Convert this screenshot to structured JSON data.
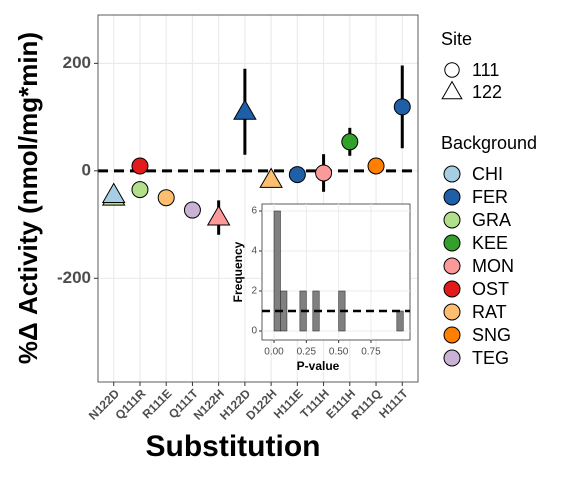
{
  "chart_data": [
    {
      "type": "scatter",
      "y_label": "%Δ Activity (nmol/mg*min)",
      "x_label": "Substitution",
      "categories": [
        "N122D",
        "Q111R",
        "R111E",
        "Q111T",
        "N122H",
        "H122D",
        "D122H",
        "H111E",
        "T111H",
        "E111H",
        "R111Q",
        "H111T"
      ],
      "ylim": [
        -393,
        290
      ],
      "yticks": [
        -200,
        0,
        200
      ],
      "grid": true,
      "hline": 0,
      "site_title": "Site",
      "sites": [
        {
          "name": "111",
          "shape": "circle"
        },
        {
          "name": "122",
          "shape": "triangle"
        }
      ],
      "background_title": "Background",
      "backgrounds": [
        {
          "name": "CHI",
          "color": "#a6cee3"
        },
        {
          "name": "FER",
          "color": "#1f5fa8"
        },
        {
          "name": "GRA",
          "color": "#b2df8a"
        },
        {
          "name": "KEE",
          "color": "#33a02c"
        },
        {
          "name": "MON",
          "color": "#fb9a99"
        },
        {
          "name": "OST",
          "color": "#e31a1c"
        },
        {
          "name": "RAT",
          "color": "#fdbf6f"
        },
        {
          "name": "SNG",
          "color": "#ff7f00"
        },
        {
          "name": "TEG",
          "color": "#cab2d6"
        }
      ],
      "points": [
        {
          "x": "N122D",
          "site": "122",
          "background": "GRA",
          "value": -50
        },
        {
          "x": "N122D",
          "site": "122",
          "background": "CHI",
          "value": -45
        },
        {
          "x": "Q111R",
          "site": "111",
          "background": "GRA",
          "value": -35
        },
        {
          "x": "Q111R",
          "site": "111",
          "background": "OST",
          "value": 9
        },
        {
          "x": "R111E",
          "site": "111",
          "background": "RAT",
          "value": -50
        },
        {
          "x": "Q111T",
          "site": "111",
          "background": "TEG",
          "value": -73
        },
        {
          "x": "N122H",
          "site": "122",
          "background": "MON",
          "value": -87,
          "error": 32
        },
        {
          "x": "H122D",
          "site": "122",
          "background": "FER",
          "value": 110,
          "error": 80
        },
        {
          "x": "D122H",
          "site": "122",
          "background": "RAT",
          "value": -17
        },
        {
          "x": "H111E",
          "site": "111",
          "background": "FER",
          "value": -7
        },
        {
          "x": "T111H",
          "site": "111",
          "background": "MON",
          "value": -4,
          "error": 35
        },
        {
          "x": "E111H",
          "site": "111",
          "background": "KEE",
          "value": 54,
          "error": 26
        },
        {
          "x": "R111Q",
          "site": "111",
          "background": "SNG",
          "value": 9
        },
        {
          "x": "H111T",
          "site": "111",
          "background": "FER",
          "value": 119,
          "error": 77
        }
      ]
    },
    {
      "type": "histogram",
      "y_label": "Frequency",
      "x_label": "P-value",
      "bins": [
        0,
        0.05,
        0.1,
        0.15,
        0.2,
        0.25,
        0.3,
        0.35,
        0.4,
        0.45,
        0.5,
        0.55,
        0.6,
        0.65,
        0.7,
        0.75,
        0.8,
        0.85,
        0.9,
        0.95,
        1
      ],
      "counts": [
        6,
        2,
        0,
        0,
        2,
        0,
        2,
        0,
        0,
        0,
        2,
        0,
        0,
        0,
        0,
        0,
        0,
        0,
        0,
        1
      ],
      "color": "#808080",
      "xlim": [
        -0.093,
        1.052
      ],
      "ylim": [
        -0.45,
        6.35
      ],
      "xticks": [
        {
          "value": 0,
          "label": "0.00"
        },
        {
          "value": 0.25,
          "label": "0.25"
        },
        {
          "value": 0.5,
          "label": "0.50"
        },
        {
          "value": 0.75,
          "label": "0.75"
        }
      ],
      "yticks": [
        0,
        2,
        4,
        6
      ],
      "hline": 1
    }
  ]
}
